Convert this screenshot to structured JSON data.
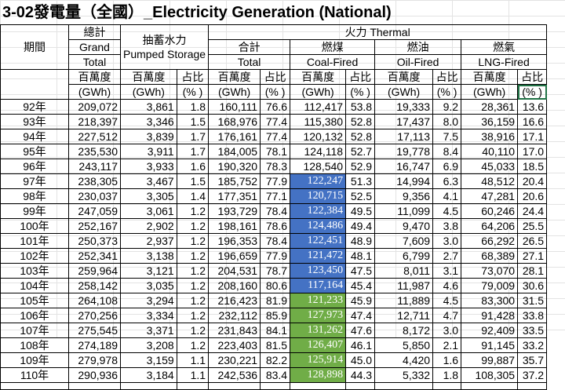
{
  "title": "3-02發電量（全國）_Electricity Generation (National)",
  "colors": {
    "blue_fill": "#4472c4",
    "green_fill": "#70ad47"
  },
  "header": {
    "period": "期間",
    "total_zh": "總計",
    "total_en1": "Grand",
    "total_en2": "Total",
    "pumped_zh": "抽蓄水力",
    "pumped_en": "Pumped Storage",
    "thermal": "火力 Thermal",
    "sub_total_zh": "合計",
    "sub_total_en": "Total",
    "coal_zh": "燃煤",
    "coal_en": "Coal-Fired",
    "oil_zh": "燃油",
    "oil_en": "Oil-Fired",
    "lng_zh": "燃氣",
    "lng_en": "LNG-Fired",
    "unit_mwh": "百萬度",
    "unit_gwh": "(GWh)",
    "share": "占比",
    "pct": "(% )"
  },
  "rows": [
    [
      "92年",
      "209,072",
      "3,861",
      "1.8",
      "160,111",
      "76.6",
      "112,417",
      "53.8",
      "19,333",
      "9.2",
      "28,361",
      "13.6"
    ],
    [
      "93年",
      "218,397",
      "3,346",
      "1.5",
      "168,976",
      "77.4",
      "115,380",
      "52.8",
      "17,437",
      "8.0",
      "36,159",
      "16.6"
    ],
    [
      "94年",
      "227,512",
      "3,839",
      "1.7",
      "176,161",
      "77.4",
      "120,132",
      "52.8",
      "17,113",
      "7.5",
      "38,916",
      "17.1"
    ],
    [
      "95年",
      "235,530",
      "3,911",
      "1.7",
      "184,005",
      "78.1",
      "124,118",
      "52.7",
      "19,778",
      "8.4",
      "40,110",
      "17.0"
    ],
    [
      "96年",
      "243,117",
      "3,933",
      "1.6",
      "190,320",
      "78.3",
      "128,540",
      "52.9",
      "16,747",
      "6.9",
      "45,033",
      "18.5"
    ],
    [
      "97年",
      "238,305",
      "3,467",
      "1.5",
      "185,752",
      "77.9",
      "122,247",
      "51.3",
      "14,994",
      "6.3",
      "48,512",
      "20.4"
    ],
    [
      "98年",
      "230,037",
      "3,305",
      "1.4",
      "177,351",
      "77.1",
      "120,715",
      "52.5",
      "9,356",
      "4.1",
      "47,281",
      "20.6"
    ],
    [
      "99年",
      "247,059",
      "3,061",
      "1.2",
      "193,729",
      "78.4",
      "122,384",
      "49.5",
      "11,099",
      "4.5",
      "60,246",
      "24.4"
    ],
    [
      "100年",
      "252,167",
      "2,902",
      "1.2",
      "198,161",
      "78.6",
      "124,486",
      "49.4",
      "9,470",
      "3.8",
      "64,206",
      "25.5"
    ],
    [
      "101年",
      "250,373",
      "2,937",
      "1.2",
      "196,353",
      "78.4",
      "122,451",
      "48.9",
      "7,609",
      "3.0",
      "66,292",
      "26.5"
    ],
    [
      "102年",
      "252,341",
      "3,138",
      "1.2",
      "196,659",
      "77.9",
      "121,472",
      "48.1",
      "6,799",
      "2.7",
      "68,389",
      "27.1"
    ],
    [
      "103年",
      "259,964",
      "3,121",
      "1.2",
      "204,531",
      "78.7",
      "123,450",
      "47.5",
      "8,011",
      "3.1",
      "73,070",
      "28.1"
    ],
    [
      "104年",
      "258,142",
      "3,035",
      "1.2",
      "208,160",
      "80.6",
      "117,164",
      "45.4",
      "11,987",
      "4.6",
      "79,009",
      "30.6"
    ],
    [
      "105年",
      "264,108",
      "3,294",
      "1.2",
      "216,423",
      "81.9",
      "121,233",
      "45.9",
      "11,889",
      "4.5",
      "83,300",
      "31.5"
    ],
    [
      "106年",
      "270,256",
      "3,334",
      "1.2",
      "232,112",
      "85.9",
      "127,973",
      "47.4",
      "12,711",
      "4.7",
      "91,428",
      "33.8"
    ],
    [
      "107年",
      "275,545",
      "3,371",
      "1.2",
      "231,843",
      "84.1",
      "131,262",
      "47.6",
      "8,172",
      "3.0",
      "92,409",
      "33.5"
    ],
    [
      "108年",
      "274,189",
      "3,208",
      "1.2",
      "223,403",
      "81.5",
      "126,407",
      "46.1",
      "5,850",
      "2.1",
      "91,145",
      "33.2"
    ],
    [
      "109年",
      "279,978",
      "3,159",
      "1.1",
      "230,221",
      "82.2",
      "125,914",
      "45.0",
      "4,420",
      "1.6",
      "99,887",
      "35.7"
    ],
    [
      "110年",
      "290,936",
      "3,184",
      "1.1",
      "242,536",
      "83.4",
      "128,898",
      "44.3",
      "5,332",
      "1.8",
      "108,305",
      "37.2"
    ]
  ],
  "highlight": {
    "blue_rows": [
      5,
      6,
      7,
      8,
      9,
      10,
      11,
      12
    ],
    "green_rows": [
      13,
      14,
      15,
      16,
      17,
      18
    ]
  }
}
